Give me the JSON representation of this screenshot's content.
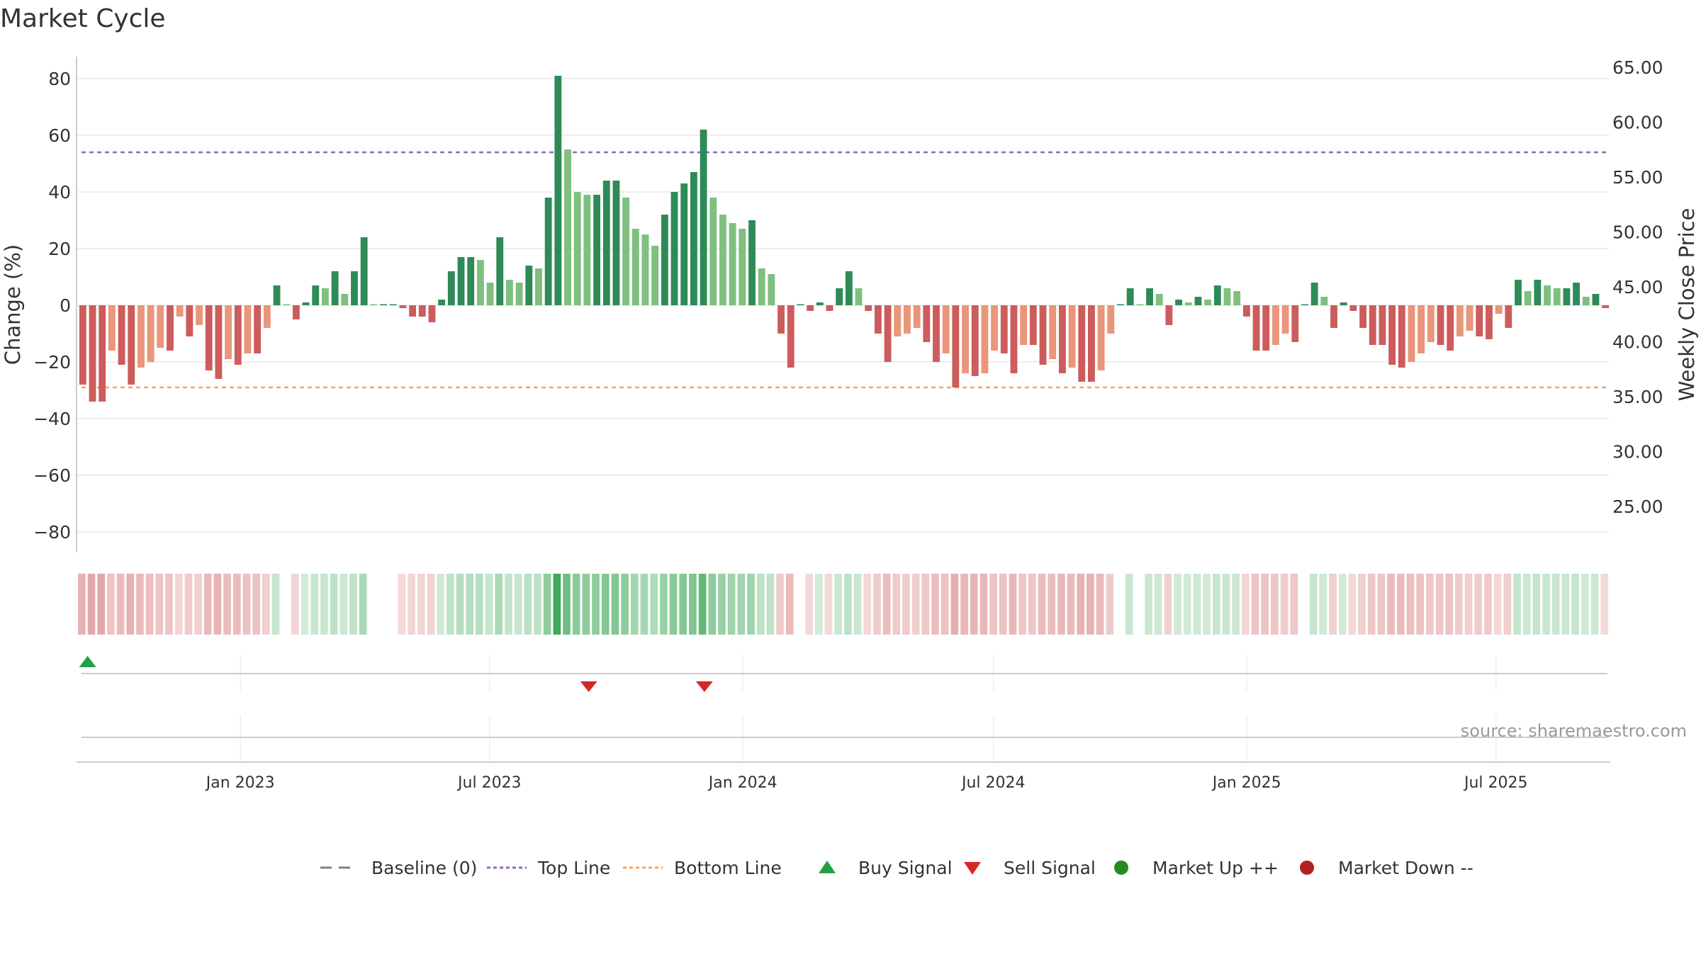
{
  "chart_data": {
    "type": "bar",
    "title": "Market Cycle",
    "ylabel_left": "Change (%)",
    "ylabel_right": "Weekly Close Price",
    "ylim_left": [
      -88,
      88
    ],
    "ylim_right": [
      20,
      65
    ],
    "yticks_left": [
      "80",
      "60",
      "40",
      "20",
      "0",
      "−20",
      "−40",
      "−60",
      "−80"
    ],
    "yticks_left_values": [
      80,
      60,
      40,
      20,
      0,
      -20,
      -40,
      -60,
      -80
    ],
    "yticks_right": [
      "65.00",
      "60.00",
      "55.00",
      "50.00",
      "45.00",
      "40.00",
      "35.00",
      "30.00",
      "25.00"
    ],
    "yticks_right_values": [
      65,
      60,
      55,
      50,
      45,
      40,
      35,
      30,
      25
    ],
    "x_start": "2022-09-05",
    "x_end": "2025-09-22",
    "xticks": [
      {
        "label": "Jan 2023",
        "date": "2023-01-01"
      },
      {
        "label": "Jul 2023",
        "date": "2023-07-01"
      },
      {
        "label": "Jan 2024",
        "date": "2024-01-01"
      },
      {
        "label": "Jul 2024",
        "date": "2024-07-01"
      },
      {
        "label": "Jan 2025",
        "date": "2025-01-01"
      },
      {
        "label": "Jul 2025",
        "date": "2025-07-01"
      }
    ],
    "top_line": 54,
    "bottom_line": -29,
    "grid": true,
    "legend_position": "bottom-center",
    "values": [
      -28,
      -34,
      -34,
      -16,
      -21,
      -28,
      -22,
      -20,
      -15,
      -16,
      -4,
      -11,
      -7,
      -23,
      -26,
      -19,
      -21,
      -17,
      -17,
      -8,
      7,
      0,
      -5,
      1,
      7,
      6,
      12,
      4,
      12,
      24,
      0,
      0,
      0,
      -1,
      -4,
      -4,
      -6,
      2,
      12,
      17,
      17,
      16,
      8,
      24,
      9,
      8,
      14,
      13,
      38,
      81,
      55,
      40,
      39,
      39,
      44,
      44,
      38,
      27,
      25,
      21,
      32,
      40,
      43,
      47,
      62,
      38,
      32,
      29,
      27,
      30,
      13,
      11,
      -10,
      -22,
      0,
      -2,
      1,
      -2,
      6,
      12,
      6,
      -2,
      -10,
      -20,
      -11,
      -10,
      -8,
      -13,
      -20,
      -17,
      -29,
      -24,
      -25,
      -24,
      -16,
      -17,
      -24,
      -14,
      -14,
      -21,
      -19,
      -24,
      -22,
      -27,
      -27,
      -23,
      -10,
      0,
      6,
      0,
      6,
      4,
      -7,
      2,
      1,
      3,
      2,
      7,
      6,
      5,
      -4,
      -16,
      -16,
      -14,
      -10,
      -13,
      0,
      8,
      3,
      -8,
      1,
      -2,
      -8,
      -14,
      -14,
      -21,
      -22,
      -20,
      -17,
      -13,
      -14,
      -16,
      -11,
      -9,
      -11,
      -12,
      -3,
      -8,
      9,
      5,
      9,
      7,
      6,
      6,
      8,
      3,
      4,
      -1
    ],
    "price": [],
    "buy_signals": [
      "2022-09-12"
    ],
    "sell_signals": [
      "2023-09-11",
      "2023-12-04"
    ],
    "legend": [
      {
        "label": "Baseline (0)",
        "marker": "dash",
        "color": "#7f7f7f"
      },
      {
        "label": "Top Line",
        "marker": "dot",
        "color": "#9467bd"
      },
      {
        "label": "Bottom Line",
        "marker": "dot",
        "color": "#f4a460"
      },
      {
        "label": "Buy Signal",
        "marker": "triangle-up",
        "color": "#22a045"
      },
      {
        "label": "Sell Signal",
        "marker": "triangle-down",
        "color": "#d62728"
      },
      {
        "label": "Market Up ++",
        "marker": "circle",
        "color": "#228b22"
      },
      {
        "label": "Market Down --",
        "marker": "circle",
        "color": "#b22222"
      }
    ],
    "colors": {
      "strong_up": "#2e8b57",
      "weak_up": "#7fbf7f",
      "strong_down": "#cd5c5c",
      "weak_down": "#e9967a",
      "top_line": "#9467bd",
      "bottom_line": "#f4a460",
      "buy": "#22a045",
      "sell": "#d62728"
    }
  },
  "source": "source: sharemaestro.com"
}
